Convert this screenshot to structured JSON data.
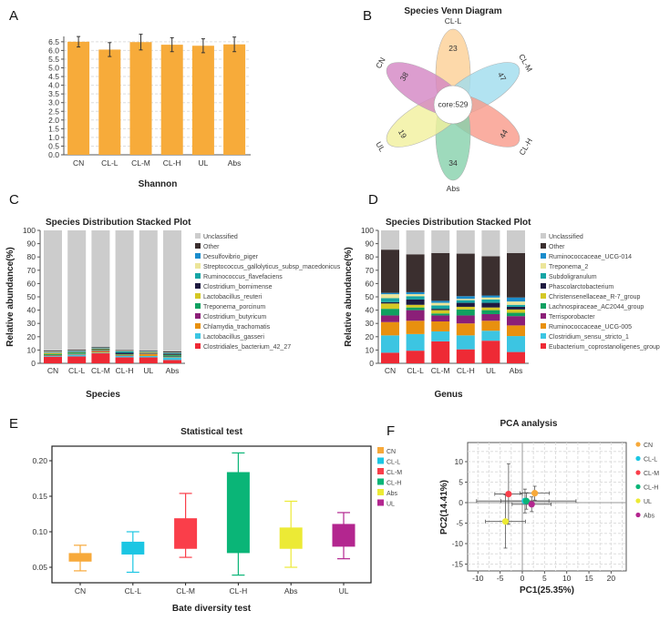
{
  "panel_labels": [
    "A",
    "B",
    "C",
    "D",
    "E",
    "F"
  ],
  "chart_data": [
    {
      "id": "A",
      "type": "bar",
      "xlabel": "Shannon",
      "ylabel": "",
      "categories": [
        "CN",
        "CL-L",
        "CL-M",
        "CL-H",
        "UL",
        "Abs"
      ],
      "values": [
        6.5,
        6.05,
        6.48,
        6.33,
        6.27,
        6.35
      ],
      "errors": [
        0.3,
        0.4,
        0.45,
        0.4,
        0.4,
        0.42
      ],
      "ylim": [
        0,
        6.5
      ],
      "yticks": [
        "0.0",
        "0.5",
        "1.0",
        "1.5",
        "2.0",
        "2.5",
        "3.0",
        "3.5",
        "4.0",
        "4.5",
        "5.0",
        "5.5",
        "6.0",
        "6.5"
      ],
      "grid": true,
      "color": "#f7ab3a"
    },
    {
      "id": "B",
      "type": "venn",
      "title": "Species Venn Diagram",
      "sets": [
        {
          "name": "CL-L",
          "unique": 23,
          "color": "#fdcf95"
        },
        {
          "name": "CL-M",
          "unique": 47,
          "color": "#9fdcee"
        },
        {
          "name": "CL-H",
          "unique": 44,
          "color": "#f99a8a"
        },
        {
          "name": "Abs",
          "unique": 34,
          "color": "#86d1ab"
        },
        {
          "name": "UL",
          "unique": 19,
          "color": "#f1f09c"
        },
        {
          "name": "CN",
          "unique": 38,
          "color": "#d384c3"
        }
      ],
      "core_label": "core:529"
    },
    {
      "id": "C",
      "type": "stacked_bar",
      "title": "Species Distribution Stacked Plot",
      "xlabel": "Species",
      "ylabel": "Relative abundance(%)",
      "ylim": [
        0,
        100
      ],
      "yticks": [
        "0",
        "10",
        "20",
        "30",
        "40",
        "50",
        "60",
        "70",
        "80",
        "90",
        "100"
      ],
      "categories": [
        "CN",
        "CL-L",
        "CL-M",
        "CL-H",
        "UL",
        "Abs"
      ],
      "legend": [
        "Unclassified",
        "Other",
        "Desulfovibrio_piger",
        "Streptococcus_gallolyticus_subsp_macedonicus",
        "Ruminococcus_flavefaciens",
        "Clostridium_bornimense",
        "Lactobacillus_reuteri",
        "Treponema_porcinum",
        "Clostridium_butyricum",
        "Chlamydia_trachomatis",
        "Lactobacillus_gasseri",
        "Clostridiales_bacterium_42_27"
      ],
      "colors": [
        "#cccccc",
        "#3b2f2f",
        "#1a8ccc",
        "#ece59a",
        "#16a5a5",
        "#1e1a40",
        "#d4c825",
        "#10a060",
        "#8b1f78",
        "#e8900f",
        "#3cc5e2",
        "#ee2a35"
      ],
      "series_bottom_up": [
        [
          5.0,
          0.5,
          0.3,
          0.3,
          0.8,
          0.8,
          0.3,
          0.3,
          0.5,
          0.2,
          0.6
        ],
        [
          5.2,
          1.2,
          0.3,
          0.3,
          1.0,
          0.3,
          0.3,
          0.5,
          0.3,
          0.2,
          0.6
        ],
        [
          7.5,
          0.5,
          1.0,
          0.5,
          0.5,
          0.5,
          0.5,
          0.3,
          0.3,
          0.2,
          0.5
        ],
        [
          4.5,
          1.0,
          0.3,
          0.3,
          0.5,
          0.3,
          1.0,
          1.0,
          0.3,
          0.2,
          0.5
        ],
        [
          4.5,
          1.0,
          1.5,
          0.3,
          0.3,
          0.3,
          0.3,
          0.3,
          0.5,
          0.2,
          0.5
        ],
        [
          2.5,
          2.0,
          0.3,
          0.3,
          1.0,
          0.3,
          0.8,
          0.5,
          0.3,
          0.2,
          0.8
        ]
      ]
    },
    {
      "id": "D",
      "type": "stacked_bar",
      "title": "Species Distribution Stacked Plot",
      "xlabel": "Genus",
      "ylabel": "Relative abundance(%)",
      "ylim": [
        0,
        100
      ],
      "yticks": [
        "0",
        "10",
        "20",
        "30",
        "40",
        "50",
        "60",
        "70",
        "80",
        "90",
        "100"
      ],
      "categories": [
        "CN",
        "CL-L",
        "CL-M",
        "CL-H",
        "UL",
        "Abs"
      ],
      "legend": [
        "Unclassified",
        "Other",
        "Ruminococcaceae_UCG-014",
        "Treponema_2",
        "Subdoligranulum",
        "Phascolarctobacterium",
        "Christensenellaceae_R-7_group",
        "Lachnospiraceae_AC2044_group",
        "Terrisporobacter",
        "Ruminococcaceae_UCG-005",
        "Clostridium_sensu_stricto_1",
        "Eubacterium_coprostanoligenes_group"
      ],
      "colors": [
        "#cccccc",
        "#3b2f2f",
        "#1a8ccc",
        "#ece59a",
        "#16a5a5",
        "#1e1a40",
        "#d4c825",
        "#10a060",
        "#8b1f78",
        "#e8900f",
        "#3cc5e2",
        "#ee2a35"
      ],
      "series_bottom_up": [
        [
          8,
          13,
          10,
          5,
          5,
          4,
          1,
          3,
          3,
          1,
          32.5
        ],
        [
          9.5,
          12.5,
          10,
          8,
          2,
          2,
          4,
          2.5,
          1.5,
          1.5,
          28.5
        ],
        [
          16.5,
          7.5,
          7.5,
          4.5,
          1.5,
          2.5,
          1,
          2.5,
          2,
          1.5,
          36
        ],
        [
          10.5,
          10.5,
          9,
          6,
          4.5,
          2,
          3,
          2,
          1,
          2,
          32
        ],
        [
          17,
          7.5,
          7.5,
          5,
          3,
          2,
          3.5,
          2.5,
          1.5,
          1.5,
          29.5
        ],
        [
          8.5,
          12,
          8,
          7,
          2.5,
          2.5,
          2,
          1.5,
          2.5,
          3,
          33.5
        ]
      ]
    },
    {
      "id": "E",
      "type": "box",
      "title": "Statistical test",
      "xlabel": "Bate diversity test",
      "categories": [
        "CN",
        "CL-L",
        "CL-M",
        "CL-H",
        "Abs",
        "UL"
      ],
      "colors": [
        "#f7a93a",
        "#1cc6e3",
        "#fa3e4a",
        "#0ab577",
        "#ecea35",
        "#b3268f"
      ],
      "min": [
        0.045,
        0.043,
        0.064,
        0.039,
        0.05,
        0.062
      ],
      "q1": [
        0.058,
        0.068,
        0.076,
        0.07,
        0.076,
        0.079
      ],
      "q3": [
        0.07,
        0.086,
        0.119,
        0.184,
        0.106,
        0.111
      ],
      "max": [
        0.081,
        0.1,
        0.154,
        0.211,
        0.143,
        0.127
      ],
      "yticks": [
        0.05,
        0.1,
        0.15,
        0.2
      ],
      "ytick_labels": [
        "0.05",
        "0.10",
        "0.15",
        "0.20"
      ]
    },
    {
      "id": "F",
      "type": "scatter",
      "title": "PCA analysis",
      "xlabel": "PC1(25.35%)",
      "ylabel": "PC2(14.41%)",
      "xlim": [
        -12.5,
        23.5
      ],
      "ylim": [
        -16.5,
        14.5
      ],
      "xticks": [
        -10,
        -5,
        0,
        5,
        10,
        15,
        20
      ],
      "yticks": [
        10,
        5,
        0,
        -5,
        -10,
        -15
      ],
      "xtick_labels": [
        "-10",
        "-5",
        "0",
        "5",
        "10",
        "15",
        "20"
      ],
      "ytick_labels": [
        "10",
        "5",
        "0",
        "-5",
        "-10",
        "-15"
      ],
      "points": [
        {
          "name": "CN",
          "x": 2.8,
          "y": 2.3,
          "xerr": 3.3,
          "yerr": 1.7,
          "color": "#f7a93a"
        },
        {
          "name": "CL-L",
          "x": 0.6,
          "y": 0.4,
          "xerr": 5.4,
          "yerr": 2.9,
          "color": "#1cc6e3"
        },
        {
          "name": "CL-M",
          "x": -3.1,
          "y": 2.1,
          "xerr": 3.1,
          "yerr": 7.4,
          "color": "#fa3e4a"
        },
        {
          "name": "CL-H",
          "x": 0.9,
          "y": 0.4,
          "xerr": 11.2,
          "yerr": 2.0,
          "color": "#0ab577"
        },
        {
          "name": "UL",
          "x": -3.8,
          "y": -4.6,
          "xerr": 4.5,
          "yerr": 6.5,
          "color": "#ecea35"
        },
        {
          "name": "Abs",
          "x": 2.1,
          "y": -0.4,
          "xerr": 4.4,
          "yerr": 1.8,
          "color": "#b3268f"
        }
      ]
    }
  ]
}
